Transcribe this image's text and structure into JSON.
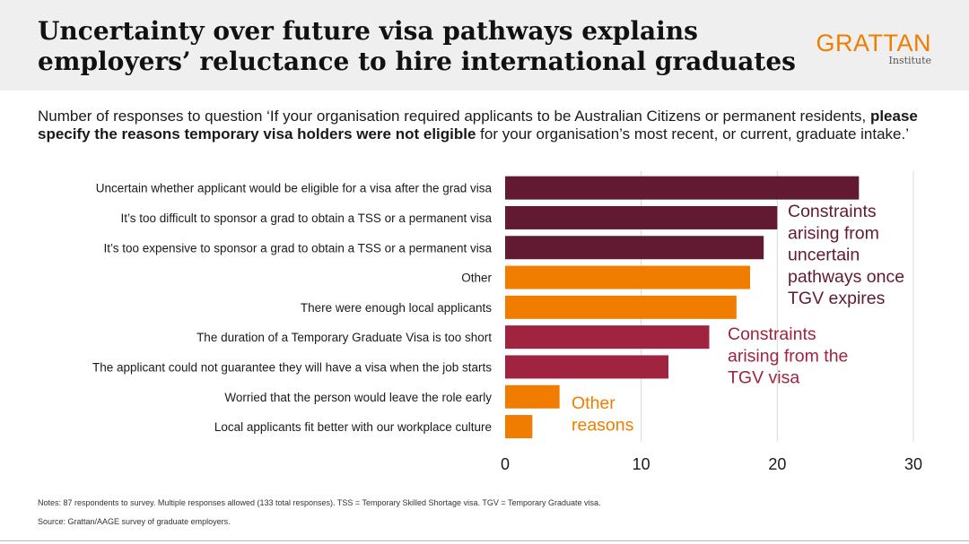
{
  "header": {
    "title": "Uncertainty over future visa pathways explains employers’ reluctance to hire international graduates",
    "logo_main": "GRATTAN",
    "logo_sub": "Institute"
  },
  "subtitle": {
    "part1": "Number of responses to question ‘If your organisation required applicants to be Australian Citizens or permanent residents, ",
    "bold": "please specify the reasons temporary visa holders were not eligible",
    "part2": " for your organisation’s most recent, or current, graduate intake.’"
  },
  "chart_data": {
    "type": "bar",
    "orientation": "horizontal",
    "categories": [
      "Uncertain whether applicant would be eligible for a visa after the grad visa",
      "It’s too difficult to sponsor a grad to obtain a TSS or a permanent visa",
      "It’s too expensive to sponsor a grad to obtain a TSS or a permanent visa",
      "Other",
      "There were enough local applicants",
      "The duration of a Temporary Graduate Visa is too short",
      "The applicant could not guarantee they will have a visa when the job starts",
      "Worried that the person would leave the role early",
      "Local applicants fit better with our workplace culture"
    ],
    "values": [
      26,
      20,
      19,
      18,
      17,
      15,
      12,
      4,
      2
    ],
    "groups": [
      "pathways",
      "pathways",
      "pathways",
      "other",
      "other",
      "tgv",
      "tgv",
      "other",
      "other"
    ],
    "group_colors": {
      "pathways": "#621a33",
      "tgv": "#a0233f",
      "other": "#f07d00"
    },
    "annotations": [
      {
        "group": "pathways",
        "lines": [
          "Constraints",
          "arising from",
          "uncertain",
          "pathways once",
          "TGV expires"
        ]
      },
      {
        "group": "tgv",
        "lines": [
          "Constraints",
          "arising from the",
          "TGV visa"
        ]
      },
      {
        "group": "other",
        "lines": [
          "Other",
          "reasons"
        ]
      }
    ],
    "xlim": [
      0,
      30
    ],
    "xticks": [
      0,
      10,
      20,
      30
    ],
    "grid": true
  },
  "notes": "Notes:  87 respondents to survey. Multiple responses allowed (133 total responses). TSS = Temporary Skilled Shortage visa. TGV = Temporary Graduate visa.",
  "source": "Source: Grattan/AAGE survey of graduate employers."
}
